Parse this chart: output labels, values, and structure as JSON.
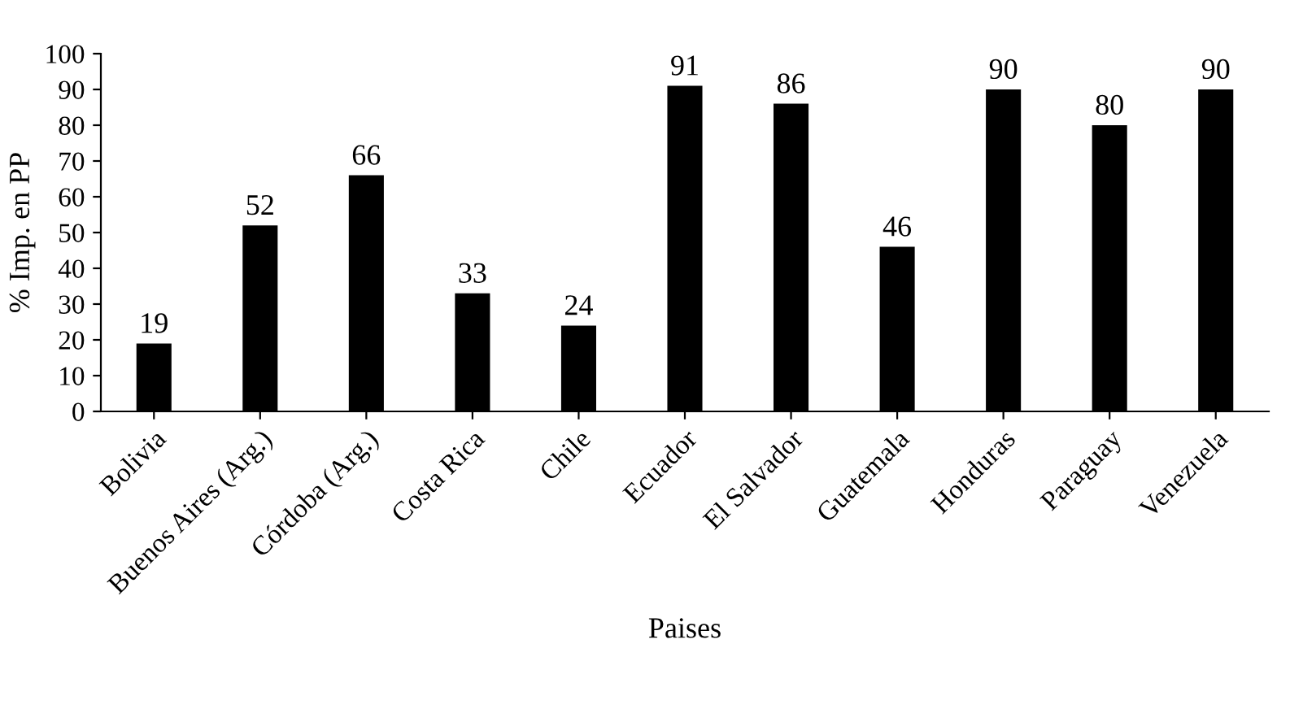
{
  "chart_data": {
    "type": "bar",
    "xlabel": "Paises",
    "ylabel": "% Imp. en PP",
    "categories": [
      "Bolivia",
      "Buenos Aires (Arg.)",
      "Córdoba (Arg.)",
      "Costa Rica",
      "Chile",
      "Ecuador",
      "El Salvador",
      "Guatemala",
      "Honduras",
      "Paraguay",
      "Venezuela"
    ],
    "values": [
      19,
      52,
      66,
      33,
      24,
      91,
      86,
      46,
      90,
      80,
      90
    ],
    "color": "#000000",
    "ylim": [
      0,
      100
    ],
    "yticks": [
      0,
      10,
      20,
      30,
      40,
      50,
      60,
      70,
      80,
      90,
      100
    ],
    "grid": false,
    "data_labels": true,
    "legend": false
  }
}
